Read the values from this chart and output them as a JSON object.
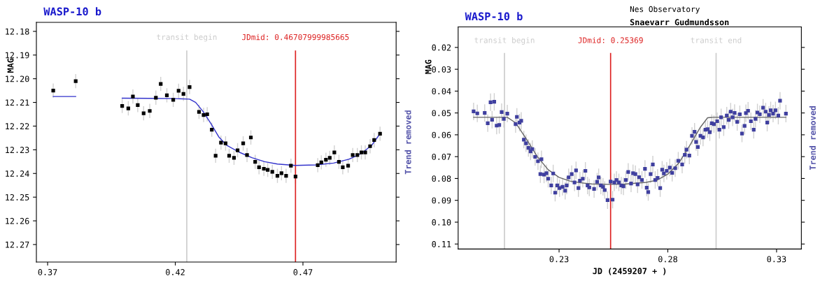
{
  "chart_data": [
    {
      "type": "scatter",
      "title": "WASP-10 b",
      "ylabel": "MAG",
      "annotations": [
        "Trend removed"
      ],
      "xlim": [
        0.3656,
        0.5065
      ],
      "xticks": [
        0.37,
        0.42,
        0.47
      ],
      "ylim": [
        12.2774,
        12.1762
      ],
      "yticks": [
        {
          "value": 12.18,
          "label": "12.18"
        },
        {
          "value": 12.19,
          "label": "12.19"
        },
        {
          "value": 12.2,
          "label": "12.20"
        },
        {
          "value": 12.21,
          "label": "12.21"
        },
        {
          "value": 12.22,
          "label": "12.22"
        },
        {
          "value": 12.23,
          "label": "12.23"
        },
        {
          "value": 12.24,
          "label": "12.24"
        },
        {
          "value": 12.25,
          "label": "12.25"
        },
        {
          "value": 12.26,
          "label": "12.26"
        },
        {
          "value": 12.27,
          "label": "12.27"
        }
      ],
      "grid": false,
      "legend": false,
      "ref_lines": [
        {
          "axis": "x",
          "value": 0.4245,
          "label": "transit begin",
          "color": "#cccccc"
        },
        {
          "axis": "x",
          "value": 0.46707999985665,
          "label": "JDmid: 0.46707999985665",
          "color": "#dd2222"
        }
      ],
      "series": [
        {
          "marker": "square",
          "color": "#000000",
          "x": [
            0.3722,
            0.381,
            0.3992,
            0.4016,
            0.4034,
            0.4053,
            0.4076,
            0.41,
            0.4124,
            0.4143,
            0.4167,
            0.4192,
            0.4213,
            0.4232,
            0.4256,
            0.4293,
            0.4311,
            0.4325,
            0.4343,
            0.4358,
            0.4379,
            0.4397,
            0.4411,
            0.443,
            0.4444,
            0.4466,
            0.4481,
            0.4496,
            0.4513,
            0.4528,
            0.4547,
            0.4562,
            0.458,
            0.46,
            0.4616,
            0.4634,
            0.4653,
            0.4671,
            0.4758,
            0.4772,
            0.479,
            0.4805,
            0.4823,
            0.4841,
            0.4856,
            0.4877,
            0.4895,
            0.4913,
            0.4929,
            0.4944,
            0.4963,
            0.4979,
            0.5002
          ],
          "values": [
            12.205,
            12.201,
            12.2115,
            12.2125,
            12.2075,
            12.2111,
            12.2146,
            12.2136,
            12.208,
            12.2022,
            12.207,
            12.2089,
            12.2051,
            12.2064,
            12.2035,
            12.214,
            12.2153,
            12.215,
            12.2215,
            12.2325,
            12.227,
            12.2273,
            12.2325,
            12.2334,
            12.2302,
            12.2273,
            12.2322,
            12.2248,
            12.2351,
            12.2374,
            12.238,
            12.2385,
            12.2393,
            12.241,
            12.2399,
            12.241,
            12.2367,
            12.2413,
            12.2365,
            12.2353,
            12.2342,
            12.2334,
            12.2311,
            12.2351,
            12.2374,
            12.2367,
            12.2322,
            12.2322,
            12.2311,
            12.2311,
            12.2285,
            12.2259,
            12.2232
          ],
          "errors": [
            0.003,
            0.003,
            0.003,
            0.003,
            0.003,
            0.003,
            0.003,
            0.003,
            0.003,
            0.003,
            0.003,
            0.003,
            0.003,
            0.003,
            0.003,
            0.003,
            0.003,
            0.003,
            0.003,
            0.003,
            0.003,
            0.003,
            0.003,
            0.003,
            0.003,
            0.003,
            0.003,
            0.003,
            0.003,
            0.003,
            0.003,
            0.003,
            0.003,
            0.003,
            0.003,
            0.003,
            0.003,
            0.003,
            0.003,
            0.003,
            0.003,
            0.003,
            0.003,
            0.003,
            0.003,
            0.003,
            0.003,
            0.003,
            0.003,
            0.003,
            0.003,
            0.003,
            0.003
          ]
        },
        {
          "type": "line",
          "marker": "none",
          "color": "#3333cc",
          "x": [
            0.3722,
            0.381,
            0.39,
            0.3992,
            0.41,
            0.42,
            0.4256,
            0.428,
            0.431,
            0.434,
            0.437,
            0.44,
            0.445,
            0.45,
            0.455,
            0.46,
            0.467,
            0.475,
            0.482,
            0.488,
            0.493,
            0.497,
            0.5002
          ],
          "values": [
            12.2075,
            12.2075,
            null,
            12.2082,
            12.2083,
            12.2084,
            12.2086,
            12.21,
            12.214,
            12.219,
            12.2245,
            12.228,
            12.231,
            12.2333,
            12.235,
            12.236,
            12.2366,
            12.2364,
            12.2356,
            12.234,
            12.2315,
            12.228,
            12.2232
          ]
        }
      ]
    },
    {
      "type": "scatter",
      "title": "WASP-10 b",
      "subtitle": "Nes Observatory",
      "annotations": [
        "Snaevarr Gudmundsson",
        "Trend removed"
      ],
      "xlabel": "JD (2459207 + )",
      "ylabel": "MAG",
      "xlim": [
        0.1836,
        0.3414
      ],
      "xticks": [
        0.23,
        0.28,
        0.33
      ],
      "ylim": [
        0.1123,
        0.0106
      ],
      "yticks": [
        0.02,
        0.03,
        0.04,
        0.05,
        0.06,
        0.07,
        0.08,
        0.09,
        {
          "value": 0.1,
          "label": "0.10"
        },
        0.11
      ],
      "grid": false,
      "legend": false,
      "ref_lines": [
        {
          "axis": "x",
          "value": 0.2049,
          "label": "transit begin",
          "color": "#cccccc"
        },
        {
          "axis": "x",
          "value": 0.25369,
          "label": "JDmid: 0.25369",
          "color": "#dd2222"
        },
        {
          "axis": "x",
          "value": 0.3022,
          "label": "transit end",
          "color": "#cccccc"
        }
      ],
      "series": [
        {
          "marker": "square",
          "color": "#3f3f9f",
          "x": [
            0.1907,
            0.1924,
            0.1958,
            0.1972,
            0.1985,
            0.1992,
            0.2002,
            0.2013,
            0.2025,
            0.2036,
            0.2046,
            0.2062,
            0.21,
            0.2106,
            0.2118,
            0.2126,
            0.2138,
            0.2148,
            0.2159,
            0.2169,
            0.2177,
            0.219,
            0.2203,
            0.2214,
            0.2219,
            0.2231,
            0.2242,
            0.225,
            0.2264,
            0.2273,
            0.2282,
            0.2292,
            0.2302,
            0.2316,
            0.2328,
            0.2335,
            0.2344,
            0.2358,
            0.2371,
            0.2378,
            0.2389,
            0.2396,
            0.2409,
            0.2421,
            0.2431,
            0.2439,
            0.2461,
            0.2475,
            0.2482,
            0.2492,
            0.2502,
            0.251,
            0.2523,
            0.2537,
            0.2546,
            0.2554,
            0.2564,
            0.2575,
            0.2586,
            0.2596,
            0.2607,
            0.2618,
            0.2631,
            0.264,
            0.2651,
            0.2661,
            0.2668,
            0.2681,
            0.2695,
            0.2703,
            0.271,
            0.2721,
            0.2731,
            0.2742,
            0.2753,
            0.2765,
            0.2774,
            0.2782,
            0.2795,
            0.2809,
            0.282,
            0.2834,
            0.2848,
            0.2866,
            0.2878,
            0.2886,
            0.2899,
            0.2911,
            0.2923,
            0.293,
            0.2938,
            0.295,
            0.2962,
            0.2973,
            0.2983,
            0.2993,
            0.3002,
            0.3012,
            0.3027,
            0.3037,
            0.3045,
            0.3057,
            0.3071,
            0.308,
            0.3089,
            0.3098,
            0.3107,
            0.3119,
            0.3131,
            0.3141,
            0.3153,
            0.3159,
            0.3169,
            0.3182,
            0.3195,
            0.3203,
            0.3212,
            0.3223,
            0.3238,
            0.325,
            0.3257,
            0.3265,
            0.3273,
            0.3284,
            0.3295,
            0.3308,
            0.3316,
            0.3343
          ],
          "values": [
            0.0493,
            0.0502,
            0.05,
            0.0547,
            0.0451,
            0.0531,
            0.0449,
            0.0558,
            0.0555,
            0.0496,
            0.0527,
            0.0503,
            0.0551,
            0.0518,
            0.0544,
            0.0536,
            0.0622,
            0.0639,
            0.066,
            0.0676,
            0.0665,
            0.0701,
            0.0721,
            0.078,
            0.0712,
            0.0782,
            0.0776,
            0.0801,
            0.0832,
            0.0777,
            0.0865,
            0.0832,
            0.0844,
            0.0838,
            0.0856,
            0.0832,
            0.0795,
            0.078,
            0.0818,
            0.0763,
            0.0844,
            0.081,
            0.0801,
            0.0765,
            0.0832,
            0.0841,
            0.0848,
            0.0815,
            0.0795,
            0.0832,
            0.0838,
            0.0853,
            0.0899,
            0.0814,
            0.0897,
            0.0818,
            0.0807,
            0.0818,
            0.0832,
            0.0836,
            0.0807,
            0.077,
            0.0823,
            0.0776,
            0.078,
            0.0827,
            0.0794,
            0.0807,
            0.0756,
            0.0842,
            0.0862,
            0.078,
            0.0736,
            0.0807,
            0.0797,
            0.0844,
            0.076,
            0.0777,
            0.0765,
            0.075,
            0.0774,
            0.0753,
            0.0719,
            0.0736,
            0.0692,
            0.0668,
            0.0695,
            0.0605,
            0.0586,
            0.0633,
            0.0656,
            0.0605,
            0.0612,
            0.0577,
            0.0574,
            0.0588,
            0.0547,
            0.0551,
            0.0538,
            0.0577,
            0.052,
            0.0565,
            0.0512,
            0.0532,
            0.0494,
            0.052,
            0.05,
            0.0541,
            0.0506,
            0.0594,
            0.0559,
            0.0501,
            0.049,
            0.0538,
            0.0577,
            0.0527,
            0.0498,
            0.0506,
            0.0476,
            0.0494,
            0.0544,
            0.0509,
            0.0488,
            0.0503,
            0.0488,
            0.0512,
            0.0444,
            0.0503
          ],
          "errors": [
            0.004,
            0.004,
            0.004,
            0.004,
            0.004,
            0.004,
            0.004,
            0.004,
            0.004,
            0.004,
            0.004,
            0.004,
            0.004,
            0.004,
            0.004,
            0.004,
            0.004,
            0.004,
            0.004,
            0.004,
            0.004,
            0.004,
            0.004,
            0.004,
            0.004,
            0.004,
            0.004,
            0.004,
            0.004,
            0.004,
            0.004,
            0.004,
            0.004,
            0.004,
            0.004,
            0.004,
            0.004,
            0.004,
            0.004,
            0.004,
            0.004,
            0.004,
            0.004,
            0.004,
            0.004,
            0.004,
            0.004,
            0.004,
            0.004,
            0.004,
            0.004,
            0.004,
            0.004,
            0.004,
            0.004,
            0.004,
            0.004,
            0.004,
            0.004,
            0.004,
            0.004,
            0.004,
            0.004,
            0.004,
            0.004,
            0.004,
            0.004,
            0.004,
            0.004,
            0.004,
            0.004,
            0.004,
            0.004,
            0.004,
            0.004,
            0.004,
            0.004,
            0.004,
            0.004,
            0.004,
            0.004,
            0.004,
            0.004,
            0.004,
            0.004,
            0.004,
            0.004,
            0.004,
            0.004,
            0.004,
            0.004,
            0.004,
            0.004,
            0.004,
            0.004,
            0.004,
            0.004,
            0.004,
            0.004,
            0.004,
            0.004,
            0.004,
            0.004,
            0.004,
            0.004,
            0.004,
            0.004,
            0.004,
            0.004,
            0.004,
            0.004,
            0.004,
            0.004,
            0.004,
            0.004,
            0.004,
            0.004,
            0.004,
            0.004,
            0.004,
            0.004,
            0.004,
            0.004,
            0.004,
            0.004,
            0.004,
            0.004,
            0.004
          ]
        },
        {
          "type": "line",
          "marker": "none",
          "color": "#666666",
          "x": [
            0.1907,
            0.2062,
            0.21,
            0.215,
            0.22,
            0.225,
            0.23,
            0.235,
            0.24,
            0.245,
            0.2537,
            0.26,
            0.27,
            0.275,
            0.28,
            0.285,
            0.29,
            0.295,
            0.2983,
            0.301,
            0.3343
          ],
          "values": [
            0.052,
            0.052,
            0.0545,
            0.062,
            0.07,
            0.076,
            0.0795,
            0.0812,
            0.082,
            0.0825,
            0.0827,
            0.0826,
            0.0818,
            0.0808,
            0.078,
            0.073,
            0.065,
            0.0565,
            0.0522,
            0.052,
            0.052
          ]
        }
      ]
    }
  ]
}
